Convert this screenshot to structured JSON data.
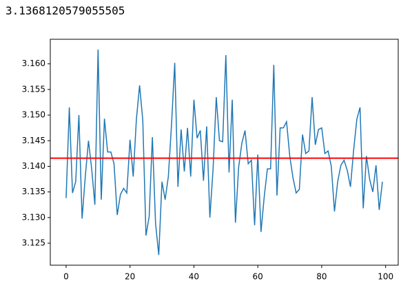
{
  "output_text": "3.1368120579055505",
  "chart_data": {
    "type": "line",
    "x": [
      0,
      1,
      2,
      3,
      4,
      5,
      6,
      7,
      8,
      9,
      10,
      11,
      12,
      13,
      14,
      15,
      16,
      17,
      18,
      19,
      20,
      21,
      22,
      23,
      24,
      25,
      26,
      27,
      28,
      29,
      30,
      31,
      32,
      33,
      34,
      35,
      36,
      37,
      38,
      39,
      40,
      41,
      42,
      43,
      44,
      45,
      46,
      47,
      48,
      49,
      50,
      51,
      52,
      53,
      54,
      55,
      56,
      57,
      58,
      59,
      60,
      61,
      62,
      63,
      64,
      65,
      66,
      67,
      68,
      69,
      70,
      71,
      72,
      73,
      74,
      75,
      76,
      77,
      78,
      79,
      80,
      81,
      82,
      83,
      84,
      85,
      86,
      87,
      88,
      89,
      90,
      91,
      92,
      93,
      94,
      95,
      96,
      97,
      98,
      99
    ],
    "series": [
      {
        "color": "#1f77b4",
        "values": [
          3.1338,
          3.1515,
          3.1348,
          3.137,
          3.15,
          3.1298,
          3.138,
          3.145,
          3.1395,
          3.1325,
          3.1628,
          3.1335,
          3.1493,
          3.1428,
          3.1428,
          3.1405,
          3.1305,
          3.1345,
          3.1357,
          3.1348,
          3.1452,
          3.138,
          3.1492,
          3.1558,
          3.149,
          3.1265,
          3.1302,
          3.1457,
          3.1288,
          3.1227,
          3.137,
          3.1335,
          3.138,
          3.1482,
          3.1602,
          3.136,
          3.1472,
          3.139,
          3.1475,
          3.138,
          3.153,
          3.1455,
          3.147,
          3.1372,
          3.1478,
          3.13,
          3.1395,
          3.1535,
          3.145,
          3.1448,
          3.1617,
          3.1388,
          3.153,
          3.129,
          3.1398,
          3.1445,
          3.147,
          3.1405,
          3.1412,
          3.1285,
          3.1423,
          3.1272,
          3.134,
          3.1395,
          3.1395,
          3.1598,
          3.1343,
          3.1475,
          3.1475,
          3.1487,
          3.142,
          3.1378,
          3.1348,
          3.1355,
          3.1462,
          3.1425,
          3.143,
          3.1535,
          3.1442,
          3.1472,
          3.1475,
          3.1425,
          3.143,
          3.14,
          3.1312,
          3.137,
          3.1402,
          3.1412,
          3.1392,
          3.136,
          3.1432,
          3.1492,
          3.1515,
          3.1318,
          3.142,
          3.1375,
          3.135,
          3.1402,
          3.1315,
          3.137
        ]
      }
    ],
    "hline": 3.141592653589793,
    "hline_color": "#ff0000",
    "xlim": [
      -4.95,
      103.95
    ],
    "xticks": [
      0,
      20,
      40,
      60,
      80,
      100
    ],
    "ylim": [
      3.1207,
      3.1648
    ],
    "yticks": [
      3.125,
      {
        "value": 3.13,
        "label": "3.130"
      },
      3.135,
      {
        "value": 3.14,
        "label": "3.140"
      },
      3.145,
      {
        "value": 3.15,
        "label": "3.150"
      },
      3.155,
      {
        "value": 3.16,
        "label": "3.160"
      }
    ]
  }
}
